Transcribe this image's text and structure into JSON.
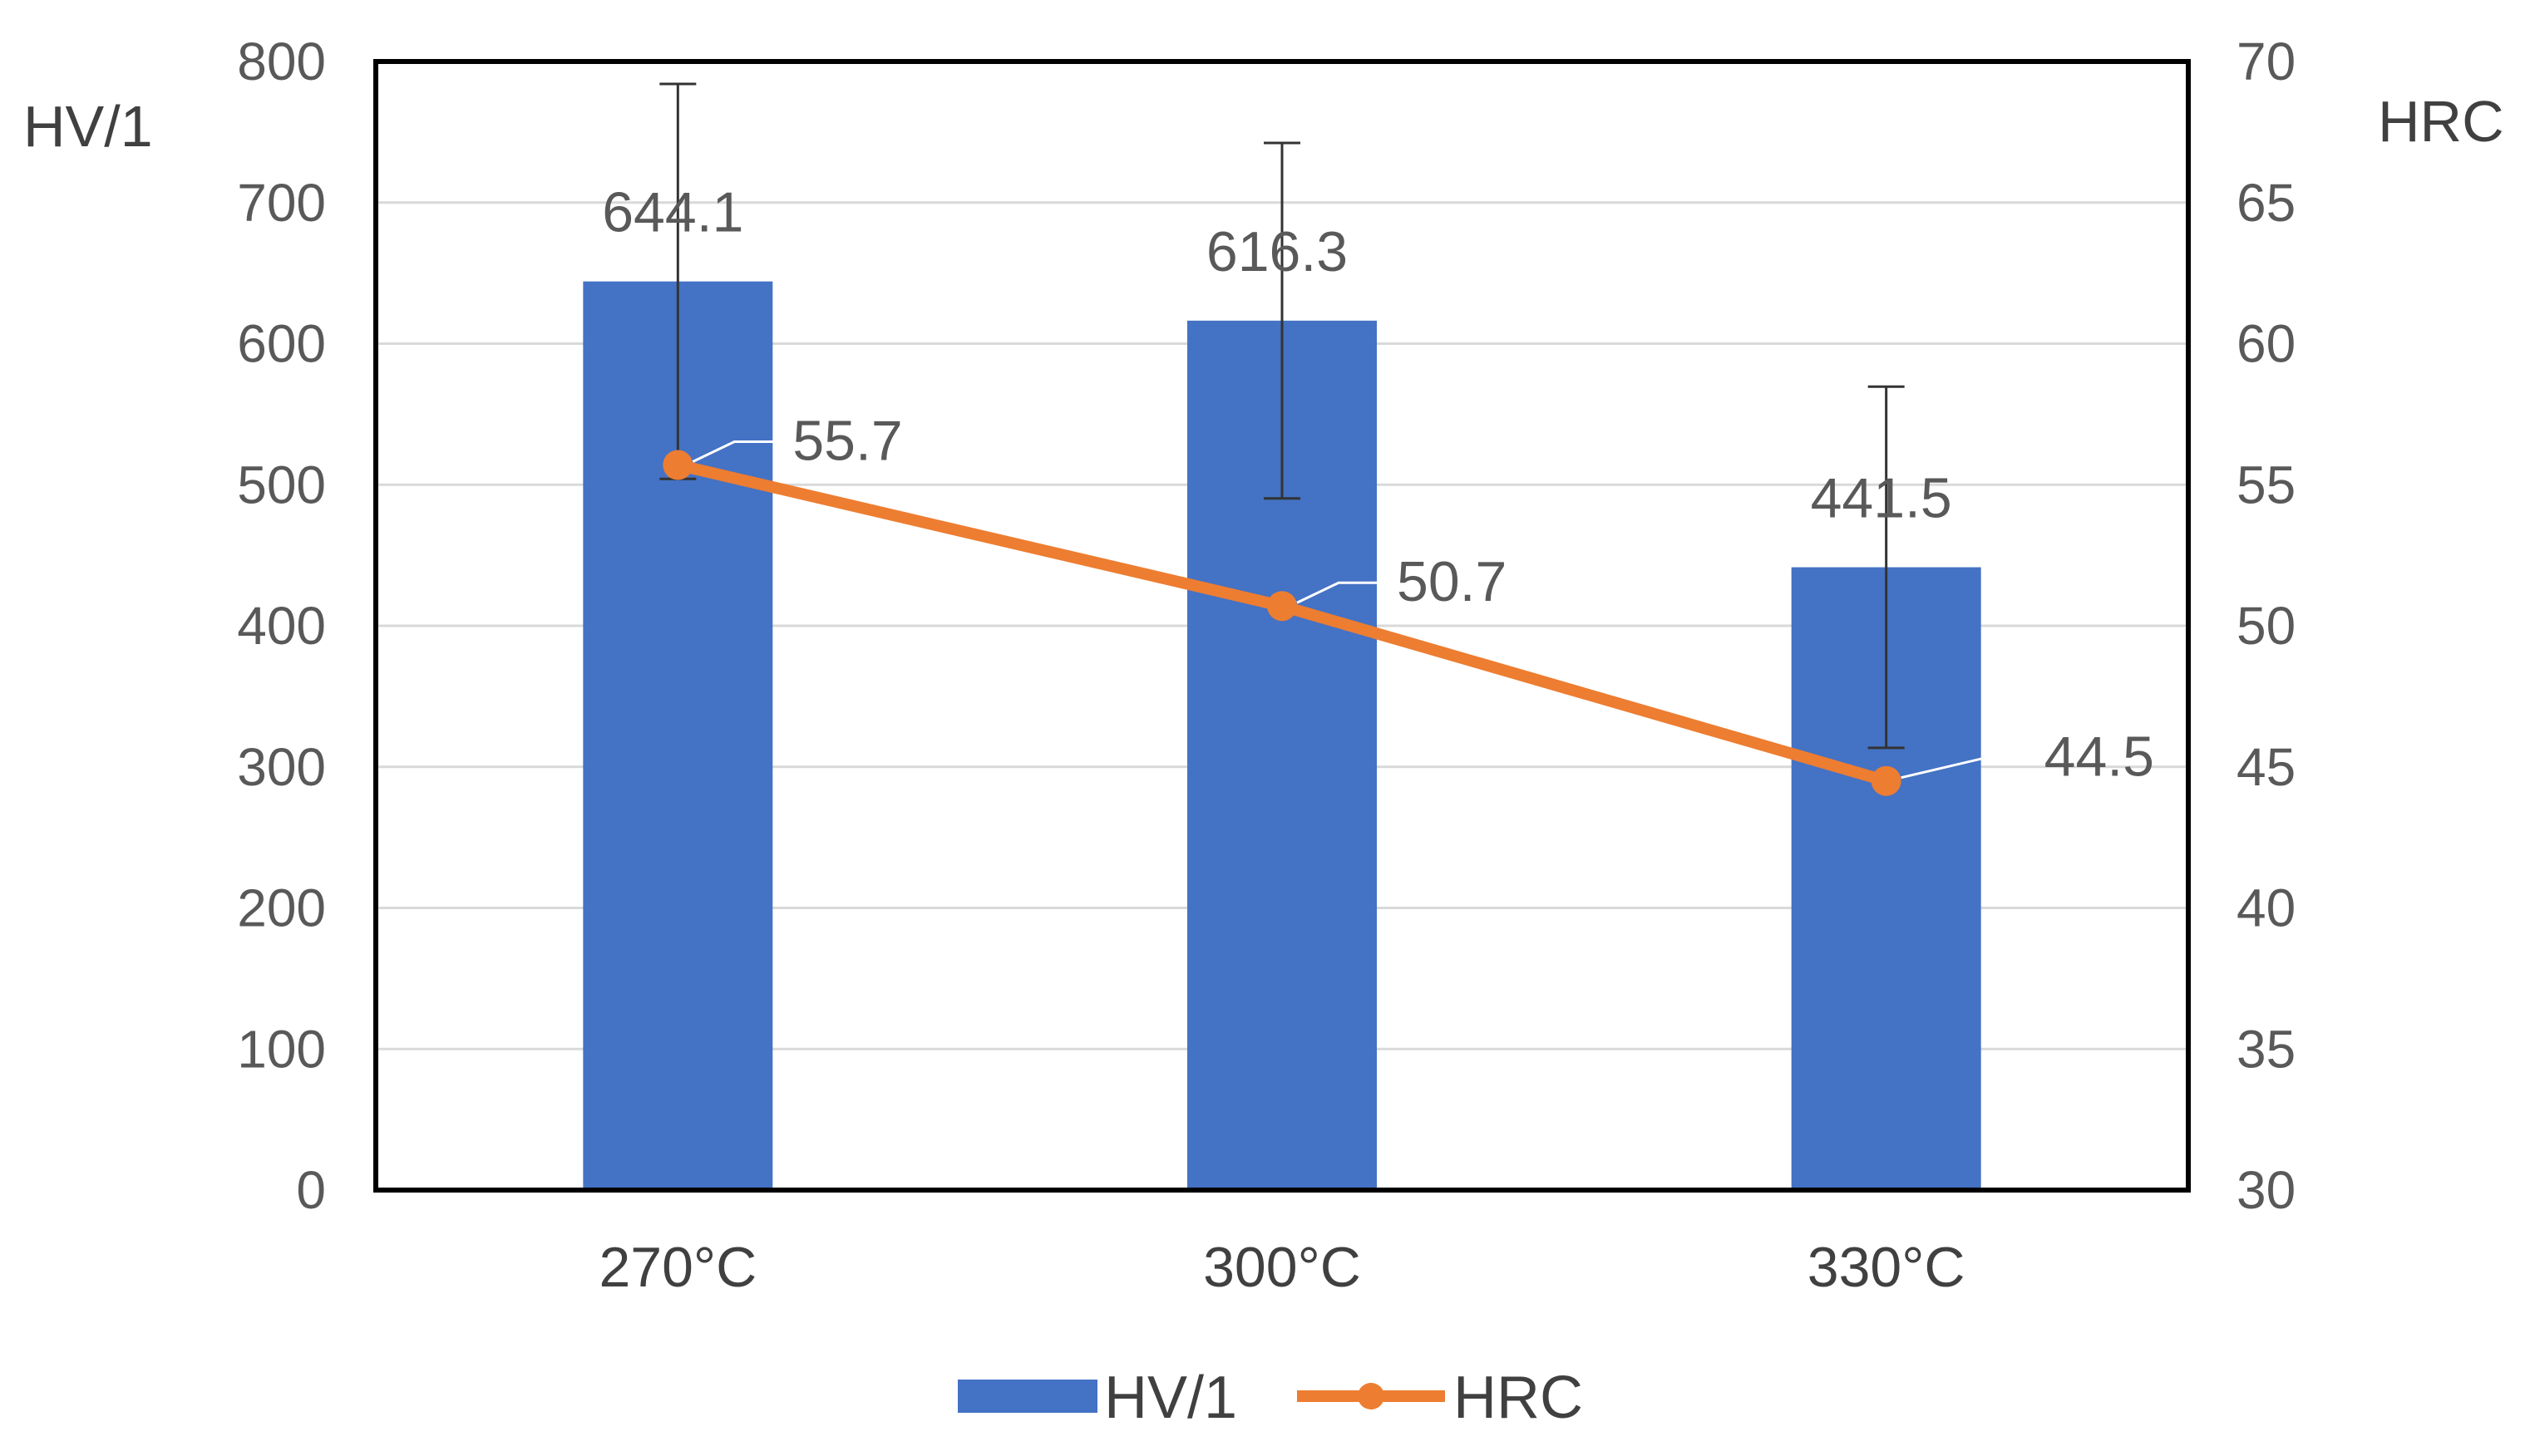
{
  "chart_data": {
    "type": "bar",
    "categories": [
      "270°C",
      "300°C",
      "330°C"
    ],
    "series": [
      {
        "name": "HV/1",
        "type": "bar",
        "axis": "left",
        "color": "#4472C4",
        "values": [
          644.1,
          616.3,
          441.5
        ],
        "error": [
          140,
          126,
          128
        ],
        "labels": [
          "644.1",
          "616.3",
          "441.5"
        ]
      },
      {
        "name": "HRC",
        "type": "line",
        "axis": "right",
        "color": "#ED7D31",
        "values": [
          55.7,
          50.7,
          44.5
        ],
        "labels": [
          "55.7",
          "50.7",
          "44.5"
        ]
      }
    ],
    "y_left": {
      "label": "HV/1",
      "ylim": [
        0,
        800
      ],
      "ticks": [
        "0",
        "100",
        "200",
        "300",
        "400",
        "500",
        "600",
        "700",
        "800"
      ]
    },
    "y_right": {
      "label": "HRC",
      "ylim": [
        30,
        70
      ],
      "ticks": [
        "30",
        "35",
        "40",
        "45",
        "50",
        "55",
        "60",
        "65",
        "70"
      ]
    },
    "grid": true,
    "legend": "bottom"
  }
}
